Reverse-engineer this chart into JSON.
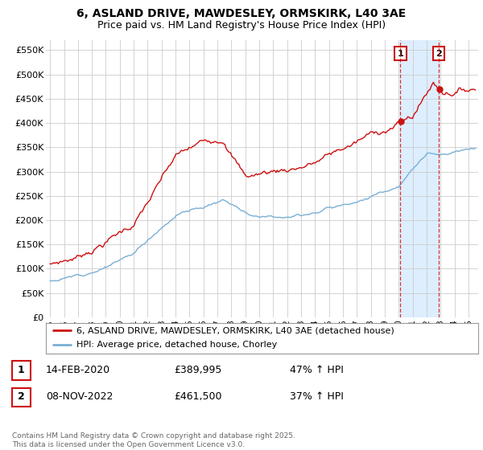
{
  "title_line1": "6, ASLAND DRIVE, MAWDESLEY, ORMSKIRK, L40 3AE",
  "title_line2": "Price paid vs. HM Land Registry's House Price Index (HPI)",
  "title_fontsize": 10,
  "subtitle_fontsize": 9,
  "ylim": [
    0,
    570000
  ],
  "yticks": [
    0,
    50000,
    100000,
    150000,
    200000,
    250000,
    300000,
    350000,
    400000,
    450000,
    500000,
    550000
  ],
  "ytick_labels": [
    "£0",
    "£50K",
    "£100K",
    "£150K",
    "£200K",
    "£250K",
    "£300K",
    "£350K",
    "£400K",
    "£450K",
    "£500K",
    "£550K"
  ],
  "hpi_color": "#7aafd4",
  "price_color": "#cc1111",
  "shade_color": "#ddeeff",
  "marker1_date": 2020.12,
  "marker1_price": 389995,
  "marker2_date": 2022.87,
  "marker2_price": 461500,
  "legend_line1": "6, ASLAND DRIVE, MAWDESLEY, ORMSKIRK, L40 3AE (detached house)",
  "legend_line2": "HPI: Average price, detached house, Chorley",
  "table_row1_num": "1",
  "table_row1_date": "14-FEB-2020",
  "table_row1_price": "£389,995",
  "table_row1_hpi": "47% ↑ HPI",
  "table_row2_num": "2",
  "table_row2_date": "08-NOV-2022",
  "table_row2_price": "£461,500",
  "table_row2_hpi": "37% ↑ HPI",
  "footer": "Contains HM Land Registry data © Crown copyright and database right 2025.\nThis data is licensed under the Open Government Licence v3.0.",
  "bg_color": "#ffffff",
  "plot_bg": "#ffffff"
}
